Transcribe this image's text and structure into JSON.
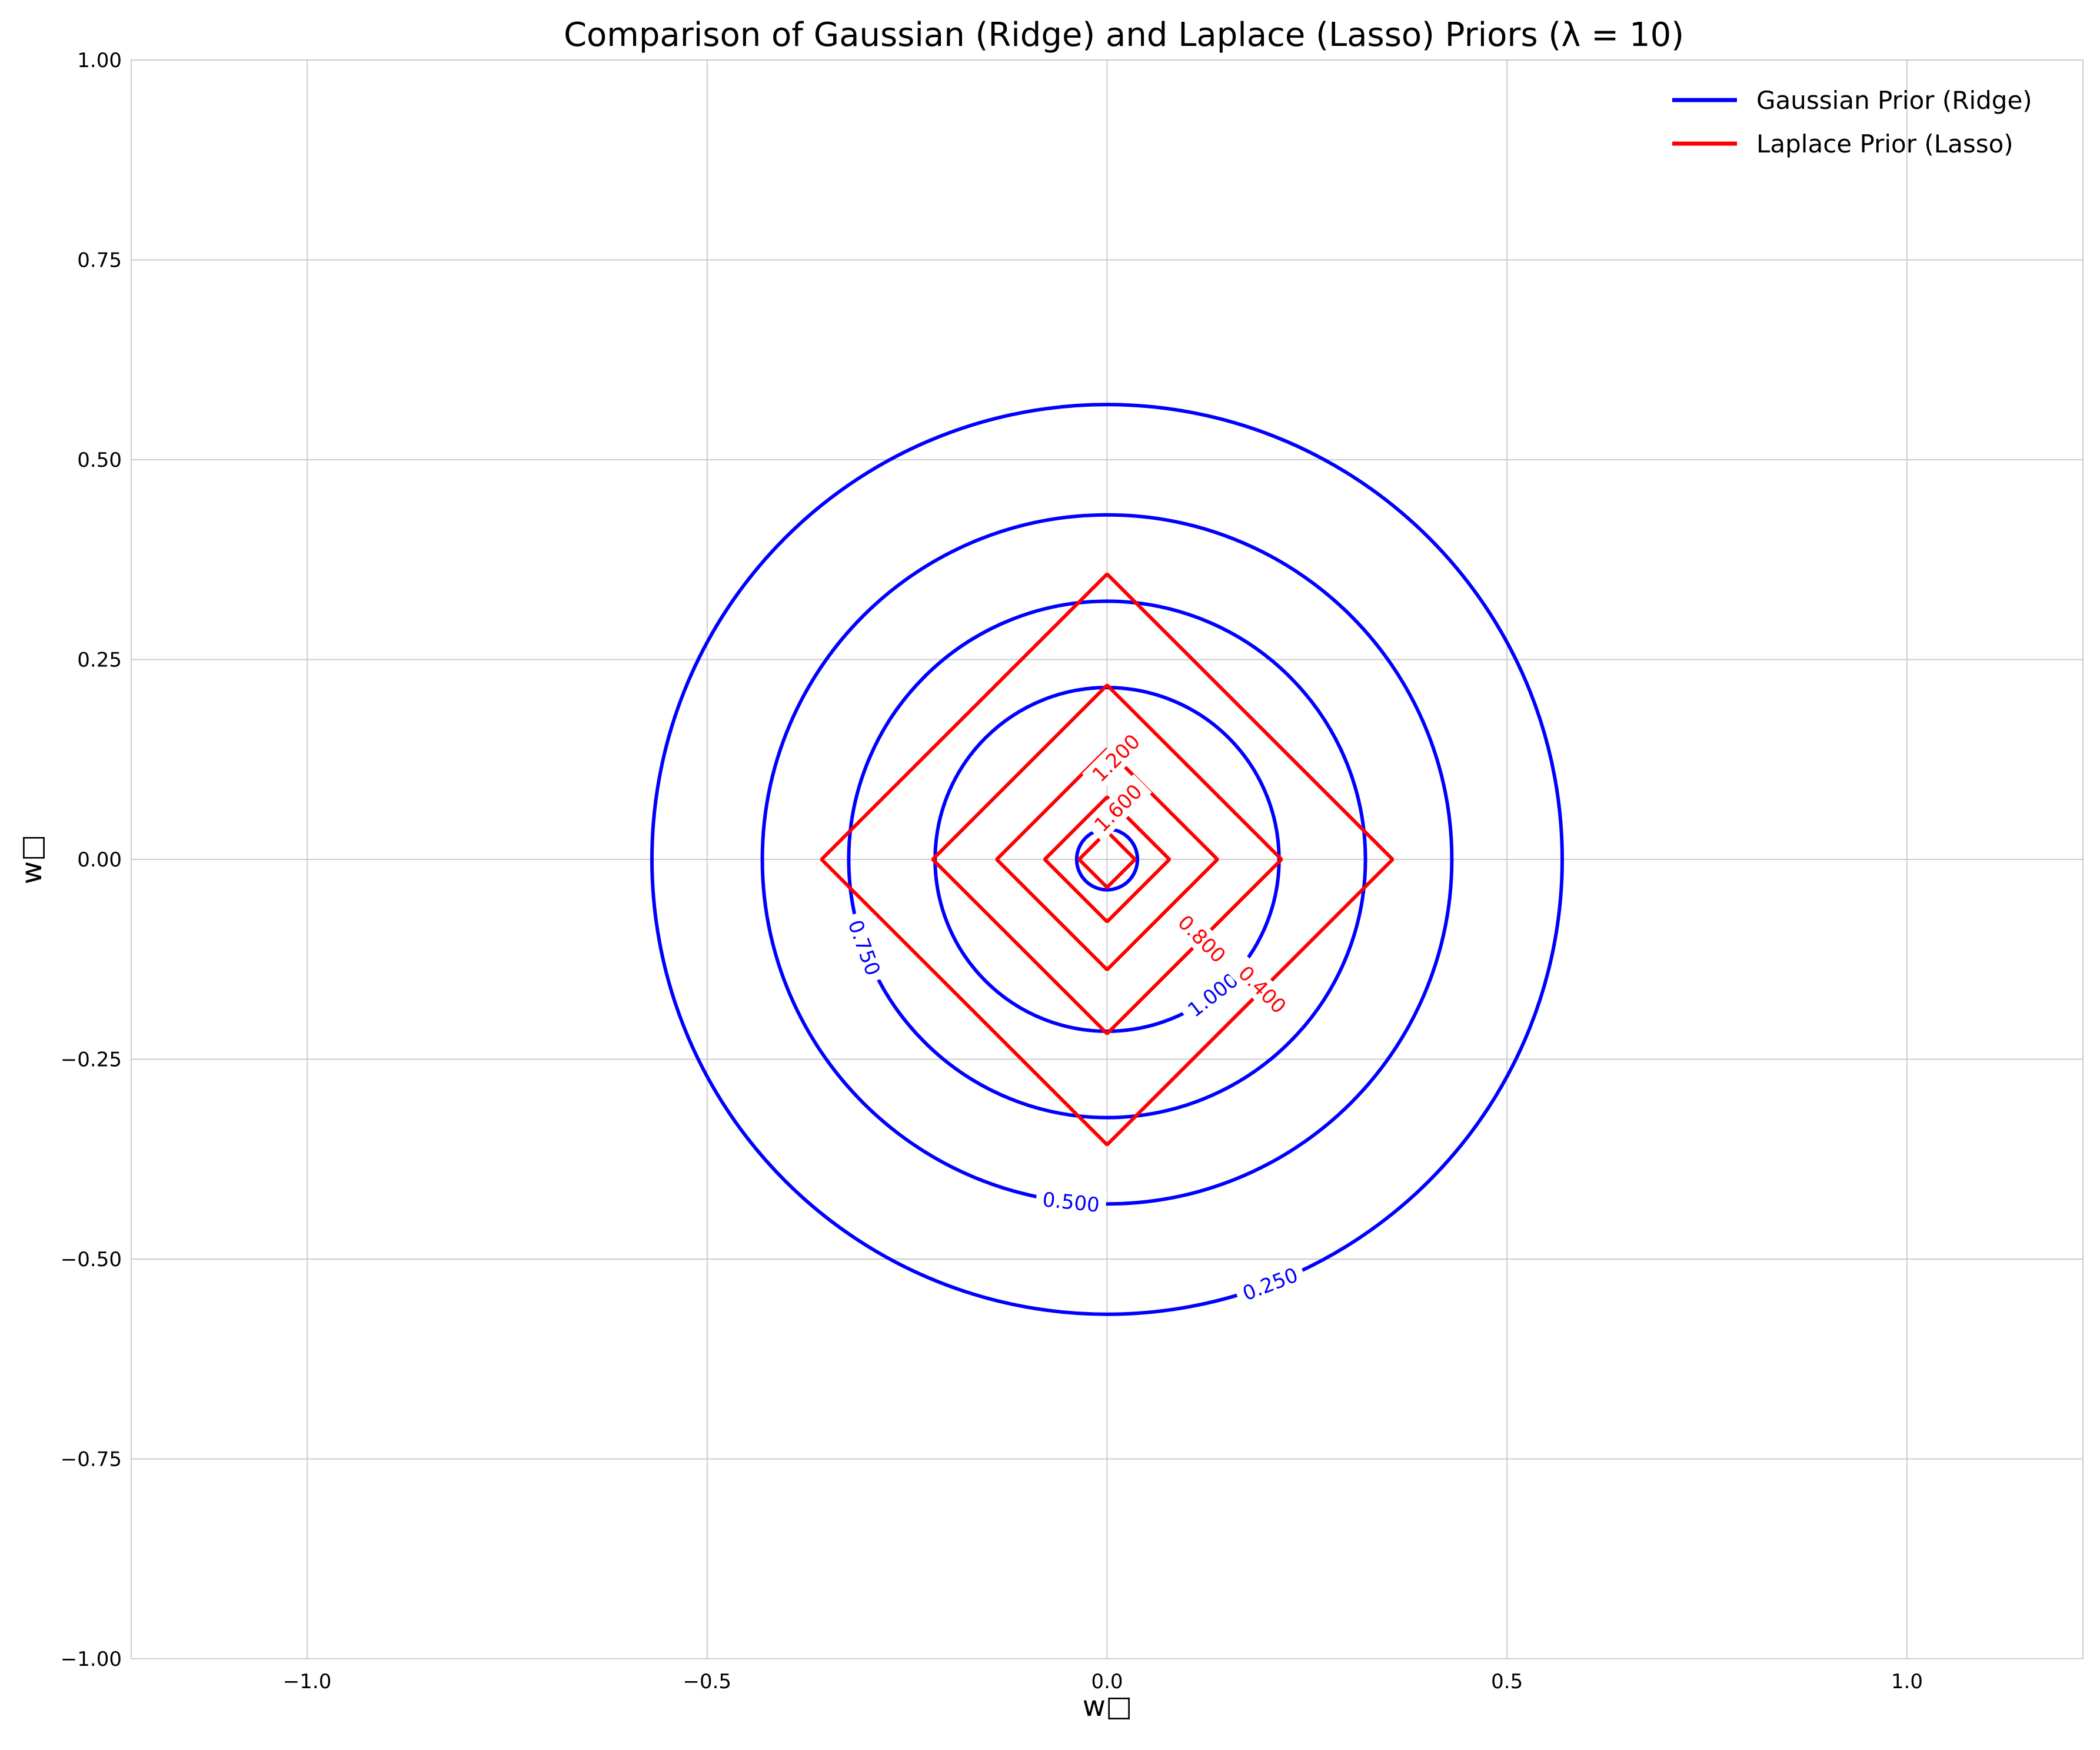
{
  "chart_data": {
    "type": "contour",
    "title": "Comparison of Gaussian (Ridge) and Laplace (Lasso) Priors (λ = 10)",
    "xlabel": "w□",
    "ylabel": "w□",
    "xlim": [
      -1.22,
      1.22
    ],
    "ylim": [
      -1.0,
      1.0
    ],
    "x_ticks": [
      -1.0,
      -0.5,
      0.0,
      0.5,
      1.0
    ],
    "x_tick_labels": [
      "−1.0",
      "−0.5",
      "0.0",
      "0.5",
      "1.0"
    ],
    "y_ticks": [
      -1.0,
      -0.75,
      -0.5,
      -0.25,
      0.0,
      0.25,
      0.5,
      0.75,
      1.0
    ],
    "y_tick_labels": [
      "−1.00",
      "−0.75",
      "−0.50",
      "−0.25",
      "0.00",
      "0.25",
      "0.50",
      "0.75",
      "1.00"
    ],
    "grid": true,
    "legend_position": "top-right",
    "series": [
      {
        "name": "Gaussian Prior (Ridge)",
        "color": "#0000ff",
        "shape": "circle",
        "contours": [
          {
            "radius": 0.569,
            "label": "0.250",
            "label_angle_deg": -69
          },
          {
            "radius": 0.431,
            "label": "0.500",
            "label_angle_deg": -96
          },
          {
            "radius": 0.323,
            "label": "0.750",
            "label_angle_deg": -160
          },
          {
            "radius": 0.215,
            "label": "1.000",
            "label_angle_deg": -52
          },
          {
            "radius": 0.038,
            "label": "",
            "label_angle_deg": 0
          }
        ]
      },
      {
        "name": "Laplace Prior (Lasso)",
        "color": "#ff0000",
        "shape": "diamond",
        "contours": [
          {
            "radius": 0.357,
            "label": "0.400",
            "label_angle_deg": -40
          },
          {
            "radius": 0.218,
            "label": "0.800",
            "label_angle_deg": -40
          },
          {
            "radius": 0.138,
            "label": "1.200",
            "label_angle_deg": 85
          },
          {
            "radius": 0.078,
            "label": "1.600",
            "label_angle_deg": 78
          },
          {
            "radius": 0.035,
            "label": "",
            "label_angle_deg": 0
          }
        ]
      }
    ]
  }
}
